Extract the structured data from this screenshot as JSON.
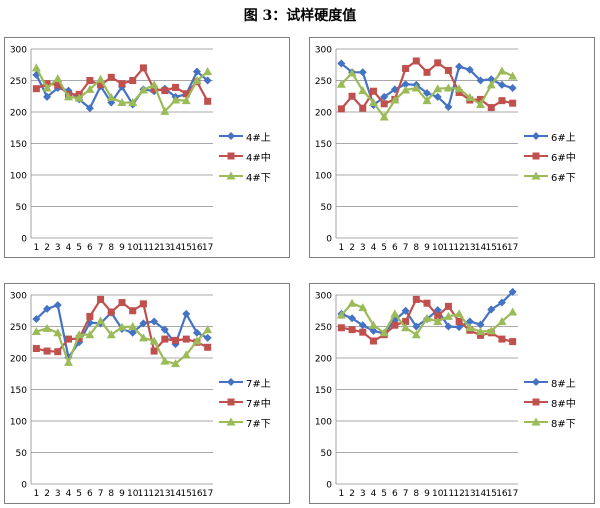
{
  "figure_title": "图 3：试样硬度值",
  "chart_data": [
    {
      "type": "line",
      "ylim": [
        0,
        300
      ],
      "yticks": [
        "0",
        "50",
        "100",
        "150",
        "200",
        "250",
        "300"
      ],
      "categories": [
        "1",
        "2",
        "3",
        "4",
        "5",
        "6",
        "7",
        "8",
        "9",
        "10",
        "11",
        "12",
        "13",
        "14",
        "15",
        "16",
        "17"
      ],
      "series": [
        {
          "name": "4#上",
          "values": [
            259,
            224,
            238,
            234,
            220,
            206,
            241,
            215,
            240,
            212,
            236,
            233,
            237,
            224,
            228,
            264,
            250
          ]
        },
        {
          "name": "4#中",
          "values": [
            237,
            245,
            243,
            228,
            228,
            250,
            243,
            255,
            245,
            250,
            270,
            236,
            234,
            239,
            229,
            248,
            217
          ]
        },
        {
          "name": "4#下",
          "values": [
            270,
            238,
            253,
            224,
            222,
            236,
            252,
            223,
            215,
            215,
            235,
            243,
            201,
            219,
            218,
            250,
            264
          ]
        }
      ]
    },
    {
      "type": "line",
      "ylim": [
        0,
        300
      ],
      "yticks": [
        "0",
        "50",
        "100",
        "150",
        "200",
        "250",
        "300"
      ],
      "categories": [
        "1",
        "2",
        "3",
        "4",
        "5",
        "6",
        "7",
        "8",
        "9",
        "10",
        "11",
        "12",
        "13",
        "14",
        "15",
        "16",
        "17"
      ],
      "series": [
        {
          "name": "6#上",
          "values": [
            277,
            263,
            263,
            211,
            224,
            236,
            244,
            243,
            230,
            224,
            208,
            272,
            267,
            250,
            252,
            243,
            238
          ]
        },
        {
          "name": "6#中",
          "values": [
            205,
            225,
            206,
            233,
            213,
            220,
            269,
            281,
            263,
            278,
            266,
            231,
            219,
            220,
            207,
            218,
            214
          ]
        },
        {
          "name": "6#下",
          "values": [
            244,
            262,
            234,
            215,
            192,
            219,
            235,
            238,
            218,
            237,
            238,
            237,
            223,
            212,
            243,
            265,
            257
          ]
        }
      ]
    },
    {
      "type": "line",
      "ylim": [
        0,
        300
      ],
      "yticks": [
        "0",
        "50",
        "100",
        "150",
        "200",
        "250",
        "300"
      ],
      "categories": [
        "1",
        "2",
        "3",
        "4",
        "5",
        "6",
        "7",
        "8",
        "9",
        "10",
        "11",
        "12",
        "13",
        "14",
        "15",
        "16",
        "17"
      ],
      "series": [
        {
          "name": "7#上",
          "values": [
            262,
            278,
            284,
            201,
            225,
            256,
            255,
            272,
            246,
            240,
            255,
            258,
            245,
            222,
            270,
            240,
            232
          ]
        },
        {
          "name": "7#中",
          "values": [
            215,
            211,
            210,
            230,
            231,
            266,
            293,
            273,
            288,
            275,
            286,
            211,
            230,
            228,
            230,
            225,
            217
          ]
        },
        {
          "name": "7#下",
          "values": [
            242,
            247,
            240,
            193,
            237,
            237,
            259,
            237,
            249,
            250,
            232,
            227,
            195,
            191,
            205,
            227,
            245
          ]
        }
      ]
    },
    {
      "type": "line",
      "ylim": [
        0,
        300
      ],
      "yticks": [
        "0",
        "50",
        "100",
        "150",
        "200",
        "250",
        "300"
      ],
      "categories": [
        "1",
        "2",
        "3",
        "4",
        "5",
        "6",
        "7",
        "8",
        "9",
        "10",
        "11",
        "12",
        "13",
        "14",
        "15",
        "16",
        "17"
      ],
      "series": [
        {
          "name": "8#上",
          "values": [
            270,
            263,
            252,
            243,
            239,
            260,
            275,
            250,
            262,
            276,
            250,
            249,
            258,
            253,
            277,
            288,
            305
          ]
        },
        {
          "name": "8#中",
          "values": [
            248,
            245,
            241,
            227,
            237,
            252,
            258,
            293,
            287,
            267,
            282,
            258,
            244,
            236,
            240,
            230,
            226
          ]
        },
        {
          "name": "8#下",
          "values": [
            268,
            287,
            280,
            252,
            240,
            270,
            248,
            237,
            263,
            258,
            266,
            270,
            248,
            242,
            243,
            258,
            273
          ]
        }
      ]
    }
  ],
  "colors": {
    "上": "#4472c4",
    "中": "#c0504d",
    "下": "#9bbb59"
  },
  "markers": {
    "上": "diamond",
    "中": "square",
    "下": "triangle"
  }
}
